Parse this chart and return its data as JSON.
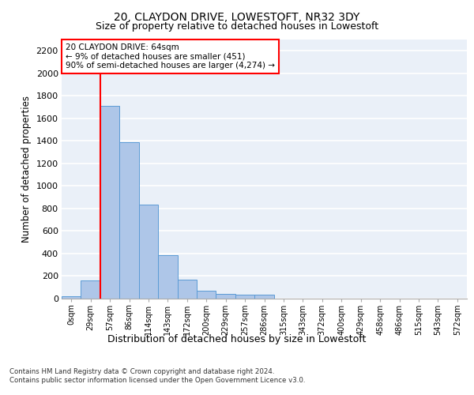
{
  "title": "20, CLAYDON DRIVE, LOWESTOFT, NR32 3DY",
  "subtitle": "Size of property relative to detached houses in Lowestoft",
  "xlabel": "Distribution of detached houses by size in Lowestoft",
  "ylabel": "Number of detached properties",
  "bin_labels": [
    "0sqm",
    "29sqm",
    "57sqm",
    "86sqm",
    "114sqm",
    "143sqm",
    "172sqm",
    "200sqm",
    "229sqm",
    "257sqm",
    "286sqm",
    "315sqm",
    "343sqm",
    "372sqm",
    "400sqm",
    "429sqm",
    "458sqm",
    "486sqm",
    "515sqm",
    "543sqm",
    "572sqm"
  ],
  "bar_values": [
    20,
    155,
    1710,
    1390,
    835,
    385,
    165,
    65,
    40,
    30,
    30,
    0,
    0,
    0,
    0,
    0,
    0,
    0,
    0,
    0,
    0
  ],
  "bar_color": "#aec6e8",
  "bar_edgecolor": "#5b9bd5",
  "background_color": "#eaf0f8",
  "grid_color": "#ffffff",
  "vline_x_index": 2,
  "vline_color": "red",
  "annotation_text": "20 CLAYDON DRIVE: 64sqm\n← 9% of detached houses are smaller (451)\n90% of semi-detached houses are larger (4,274) →",
  "annotation_box_color": "white",
  "annotation_box_edgecolor": "red",
  "ylim": [
    0,
    2300
  ],
  "yticks": [
    0,
    200,
    400,
    600,
    800,
    1000,
    1200,
    1400,
    1600,
    1800,
    2000,
    2200
  ],
  "footer_line1": "Contains HM Land Registry data © Crown copyright and database right 2024.",
  "footer_line2": "Contains public sector information licensed under the Open Government Licence v3.0."
}
